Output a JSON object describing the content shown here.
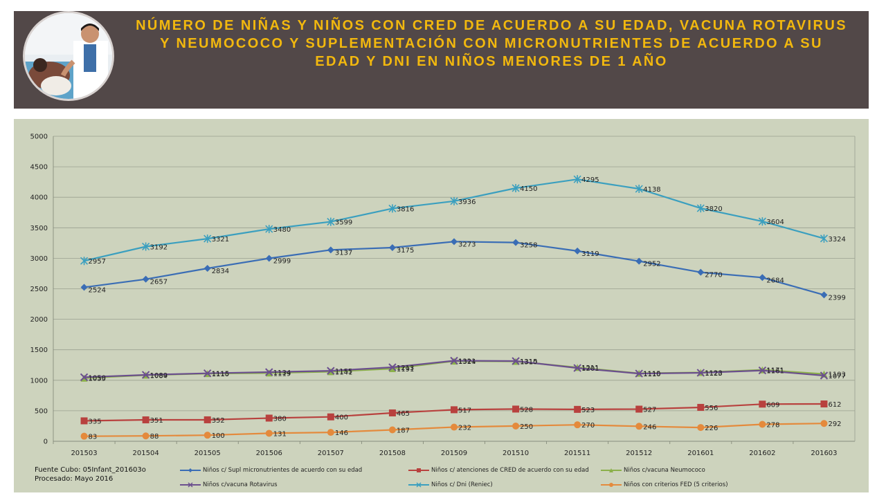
{
  "header": {
    "title": "NÚMERO DE NIÑAS Y NIÑOS CON CRED DE ACUERDO A SU EDAD, VACUNA ROTAVIRUS Y NEUMOCOCO Y SUPLEMENTACIÓN CON MICRONUTRIENTES DE ACUERDO A SU EDAD  Y DNI EN NIÑOS MENORES  DE 1 AÑO"
  },
  "source": {
    "line1": "Fuente  Cubo: 05Infant_201603o",
    "line2": "Procesado:  Mayo  2016"
  },
  "chart_data": {
    "type": "line",
    "title": "",
    "xlabel": "",
    "ylabel": "",
    "ylim": [
      0,
      5000
    ],
    "yticks": [
      0,
      500,
      1000,
      1500,
      2000,
      2500,
      3000,
      3500,
      4000,
      4500,
      5000
    ],
    "grid": true,
    "legend_position": "bottom",
    "categories": [
      "201503",
      "201504",
      "201505",
      "201506",
      "201507",
      "201508",
      "201509",
      "201510",
      "201511",
      "201512",
      "201601",
      "201602",
      "201603"
    ],
    "series": [
      {
        "name": "Niños c/ Supl micronutrientes de acuerdo con su edad",
        "color": "#3a6db5",
        "marker": "diamond",
        "values": [
          2524,
          2657,
          2834,
          2999,
          3137,
          3175,
          3273,
          3258,
          3119,
          2952,
          2770,
          2684,
          2399
        ]
      },
      {
        "name": "Niños c/ atenciones de CRED de acuerdo con su edad",
        "color": "#b8413e",
        "marker": "square",
        "values": [
          335,
          351,
          352,
          380,
          400,
          465,
          517,
          528,
          523,
          527,
          556,
          609,
          612
        ]
      },
      {
        "name": "Niños c/vacuna Neumococo",
        "color": "#8bb04a",
        "marker": "triangle",
        "values": [
          1035,
          1084,
          1110,
          1119,
          1141,
          1191,
          1314,
          1310,
          1211,
          1115,
          1128,
          1171,
          1103
        ]
      },
      {
        "name": "Niños c/vacuna Rotavirus",
        "color": "#6b4f8e",
        "marker": "x",
        "values": [
          1050,
          1089,
          1115,
          1134,
          1155,
          1213,
          1321,
          1315,
          1201,
          1110,
          1123,
          1161,
          1077
        ]
      },
      {
        "name": "Niños c/ Dni (Reniec)",
        "color": "#3a9fbf",
        "marker": "star",
        "values": [
          2957,
          3192,
          3321,
          3480,
          3599,
          3816,
          3936,
          4150,
          4295,
          4138,
          3820,
          3604,
          3324
        ]
      },
      {
        "name": "Niños con criterios FED (5 criterios)",
        "color": "#e48a3c",
        "marker": "circle",
        "values": [
          83,
          88,
          100,
          131,
          146,
          187,
          232,
          250,
          270,
          246,
          226,
          278,
          292
        ]
      }
    ]
  }
}
